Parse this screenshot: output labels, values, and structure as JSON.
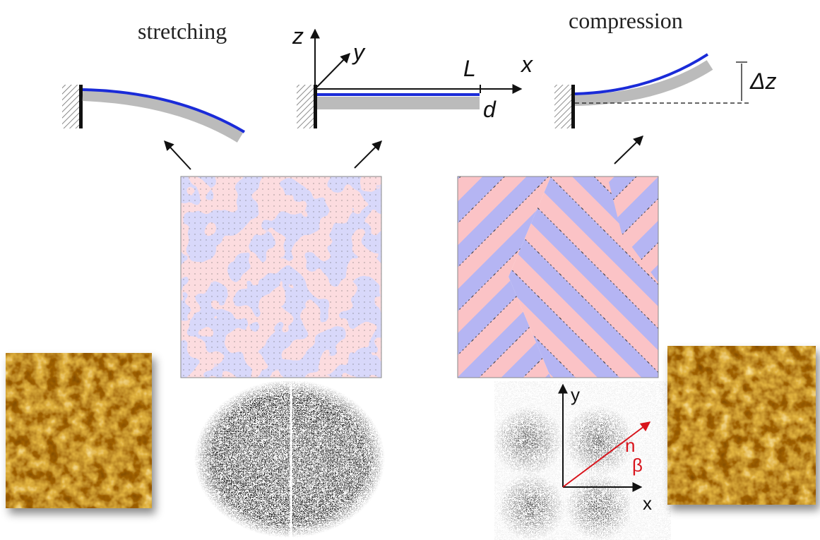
{
  "top": {
    "stretching": "stretching",
    "compression": "compression"
  },
  "axes": {
    "z": "z",
    "y": "y",
    "x": "x",
    "L": "L",
    "d": "d",
    "delta_z": "Δz"
  },
  "diffraction": {
    "y": "y",
    "x": "x",
    "n": "n",
    "beta": "β"
  }
}
